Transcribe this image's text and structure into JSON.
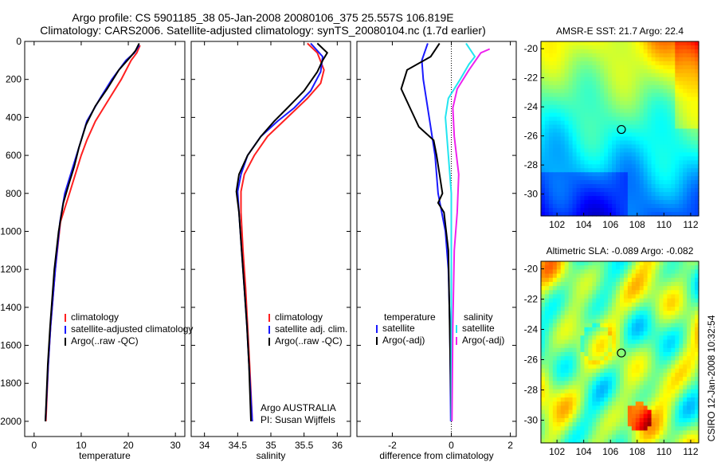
{
  "title": {
    "line1": "Argo profile: CS 5901185_38 05-Jan-2008 20080106_375 25.557S 106.819E",
    "line2": "Climatology: CARS2006. Satellite-adjusted climatology: synTS_20080104.nc (1.7d earlier)"
  },
  "side_label": "CSIRO 12-Jan-2008 10:32:54",
  "colors": {
    "climatology": "#ff2020",
    "satellite": "#1a1aff",
    "argo": "#000000",
    "satellite_salinity": "#22e5f0",
    "argo_adj_salinity": "#ee22ee"
  },
  "chart_data": [
    {
      "id": "temperature",
      "type": "line",
      "xlabel": "temperature",
      "ylim": [
        0,
        2080
      ],
      "xlim": [
        -2,
        32
      ],
      "xticks": [
        0,
        10,
        20,
        30
      ],
      "yticks": [
        0,
        200,
        400,
        600,
        800,
        1000,
        1200,
        1400,
        1600,
        1800,
        2000
      ],
      "legend": [
        "climatology",
        "satellite-adjusted climatology",
        "Argo(..raw -QC)"
      ],
      "series": [
        {
          "name": "climatology",
          "color": "#ff2020",
          "points": [
            [
              22.5,
              20
            ],
            [
              21.8,
              60
            ],
            [
              20.6,
              100
            ],
            [
              18.5,
              200
            ],
            [
              16,
              300
            ],
            [
              13,
              420
            ],
            [
              11.2,
              520
            ],
            [
              10,
              600
            ],
            [
              9,
              680
            ],
            [
              7.5,
              800
            ],
            [
              5.6,
              950
            ],
            [
              4.5,
              1200
            ],
            [
              3.5,
              1500
            ],
            [
              3,
              1700
            ],
            [
              2.5,
              2000
            ]
          ]
        },
        {
          "name": "satellite-adjusted climatology",
          "color": "#1a1aff",
          "points": [
            [
              22.3,
              20
            ],
            [
              21.3,
              60
            ],
            [
              19.5,
              100
            ],
            [
              16.5,
              200
            ],
            [
              14,
              300
            ],
            [
              11.2,
              420
            ],
            [
              10,
              520
            ],
            [
              9,
              600
            ],
            [
              8,
              680
            ],
            [
              6.5,
              800
            ],
            [
              5.5,
              950
            ],
            [
              4.5,
              1200
            ],
            [
              3.5,
              1500
            ],
            [
              3,
              1700
            ],
            [
              2.4,
              2000
            ]
          ]
        },
        {
          "name": "Argo(..raw -QC)",
          "color": "#000000",
          "points": [
            [
              22.3,
              10
            ],
            [
              21.5,
              50
            ],
            [
              20.5,
              80
            ],
            [
              18,
              150
            ],
            [
              15.5,
              250
            ],
            [
              13,
              340
            ],
            [
              11,
              440
            ],
            [
              9.5,
              560
            ],
            [
              8.5,
              660
            ],
            [
              7.5,
              740
            ],
            [
              6.2,
              850
            ],
            [
              5.2,
              1000
            ],
            [
              4.3,
              1200
            ],
            [
              3.4,
              1500
            ],
            [
              2.9,
              1700
            ],
            [
              2.4,
              2000
            ]
          ]
        }
      ],
      "annotations": []
    },
    {
      "id": "salinity",
      "type": "line",
      "xlabel": "salinity",
      "ylim": [
        0,
        2080
      ],
      "xlim": [
        33.8,
        36.2
      ],
      "xticks": [
        34,
        34.5,
        35,
        35.5,
        36
      ],
      "legend": [
        "climatology",
        "satellite adj. clim.",
        "Argo(..raw -QC)"
      ],
      "series": [
        {
          "name": "climatology",
          "color": "#ff2020",
          "points": [
            [
              35.55,
              10
            ],
            [
              35.7,
              60
            ],
            [
              35.8,
              150
            ],
            [
              35.75,
              220
            ],
            [
              35.55,
              300
            ],
            [
              35.25,
              400
            ],
            [
              34.95,
              500
            ],
            [
              34.75,
              600
            ],
            [
              34.6,
              700
            ],
            [
              34.55,
              790
            ],
            [
              34.55,
              900
            ],
            [
              34.58,
              1100
            ],
            [
              34.62,
              1300
            ],
            [
              34.65,
              1500
            ],
            [
              34.68,
              1700
            ],
            [
              34.72,
              2000
            ]
          ]
        },
        {
          "name": "satellite adj. clim.",
          "color": "#1a1aff",
          "points": [
            [
              35.6,
              10
            ],
            [
              35.78,
              80
            ],
            [
              35.75,
              160
            ],
            [
              35.6,
              260
            ],
            [
              35.35,
              350
            ],
            [
              35.1,
              420
            ],
            [
              34.85,
              500
            ],
            [
              34.65,
              600
            ],
            [
              34.55,
              700
            ],
            [
              34.5,
              790
            ],
            [
              34.52,
              900
            ],
            [
              34.56,
              1100
            ],
            [
              34.6,
              1300
            ],
            [
              34.64,
              1500
            ],
            [
              34.67,
              1700
            ],
            [
              34.72,
              2000
            ]
          ]
        },
        {
          "name": "Argo(..raw -QC)",
          "color": "#000000",
          "points": [
            [
              35.7,
              10
            ],
            [
              35.85,
              60
            ],
            [
              35.78,
              100
            ],
            [
              35.7,
              160
            ],
            [
              35.5,
              260
            ],
            [
              35.25,
              350
            ],
            [
              35.05,
              420
            ],
            [
              34.85,
              500
            ],
            [
              34.65,
              600
            ],
            [
              34.52,
              700
            ],
            [
              34.48,
              790
            ],
            [
              34.52,
              900
            ],
            [
              34.56,
              1100
            ],
            [
              34.6,
              1300
            ],
            [
              34.64,
              1500
            ],
            [
              34.67,
              1700
            ],
            [
              34.7,
              2000
            ]
          ]
        }
      ],
      "annotations": [
        "Argo AUSTRALIA",
        "PI: Susan Wijffels"
      ]
    },
    {
      "id": "difference",
      "type": "line",
      "xlabel": "difference from climatology",
      "ylim": [
        0,
        2080
      ],
      "xlim": [
        -3.2,
        2.2
      ],
      "xticks": [
        -2,
        0,
        2
      ],
      "legend_headers": [
        "temperature",
        "salinity"
      ],
      "legend": [
        "satellite",
        "Argo(-adj)",
        "satellite",
        "Argo(-adj)"
      ],
      "series": [
        {
          "name": "satellite",
          "group": "temperature",
          "color": "#1a1aff",
          "points": [
            [
              -0.8,
              10
            ],
            [
              -1.0,
              100
            ],
            [
              -0.95,
              200
            ],
            [
              -0.75,
              400
            ],
            [
              -0.55,
              600
            ],
            [
              -0.45,
              800
            ],
            [
              -0.2,
              1000
            ],
            [
              -0.1,
              1200
            ],
            [
              -0.05,
              1500
            ],
            [
              -0.02,
              2000
            ]
          ]
        },
        {
          "name": "Argo(-adj)",
          "group": "temperature",
          "color": "#000000",
          "points": [
            [
              -0.4,
              10
            ],
            [
              -0.7,
              80
            ],
            [
              -1.5,
              150
            ],
            [
              -1.7,
              250
            ],
            [
              -1.4,
              350
            ],
            [
              -1.1,
              450
            ],
            [
              -0.6,
              520
            ],
            [
              -0.5,
              600
            ],
            [
              -0.4,
              700
            ],
            [
              -0.3,
              800
            ],
            [
              -0.45,
              850
            ],
            [
              -0.25,
              900
            ],
            [
              -0.1,
              1100
            ],
            [
              0,
              2000
            ]
          ]
        },
        {
          "name": "satellite",
          "group": "salinity",
          "color": "#22e5f0",
          "points": [
            [
              0.5,
              10
            ],
            [
              0.8,
              80
            ],
            [
              0.6,
              120
            ],
            [
              0.3,
              200
            ],
            [
              -0.1,
              300
            ],
            [
              -0.2,
              400
            ],
            [
              -0.1,
              600
            ],
            [
              0,
              800
            ],
            [
              0,
              1200
            ],
            [
              0,
              2000
            ]
          ]
        },
        {
          "name": "Argo(-adj)",
          "group": "salinity",
          "color": "#ee22ee",
          "points": [
            [
              1.3,
              40
            ],
            [
              1.0,
              60
            ],
            [
              0.6,
              150
            ],
            [
              0.2,
              250
            ],
            [
              0.05,
              350
            ],
            [
              0.1,
              500
            ],
            [
              0.25,
              700
            ],
            [
              0.2,
              900
            ],
            [
              0.1,
              1100
            ],
            [
              0.05,
              1500
            ],
            [
              0.02,
              2000
            ]
          ]
        }
      ],
      "annotations": []
    }
  ],
  "maps": [
    {
      "id": "sst-map",
      "title": "AMSR-E SST: 21.7 Argo: 22.4",
      "xticks": [
        102,
        104,
        106,
        108,
        110,
        112
      ],
      "yticks": [
        -20,
        -22,
        -24,
        -26,
        -28,
        -30
      ],
      "xlim": [
        100.8,
        112.6
      ],
      "ylim": [
        -31.5,
        -19.5
      ],
      "marker": {
        "lon": 106.819,
        "lat": -25.557
      }
    },
    {
      "id": "sla-map",
      "title": "Altimetric SLA: -0.089 Argo: -0.082",
      "xticks": [
        102,
        104,
        106,
        108,
        110,
        112
      ],
      "yticks": [
        -20,
        -22,
        -24,
        -26,
        -28,
        -30
      ],
      "xlim": [
        100.8,
        112.6
      ],
      "ylim": [
        -31.5,
        -19.5
      ],
      "marker": {
        "lon": 106.819,
        "lat": -25.557
      }
    }
  ]
}
